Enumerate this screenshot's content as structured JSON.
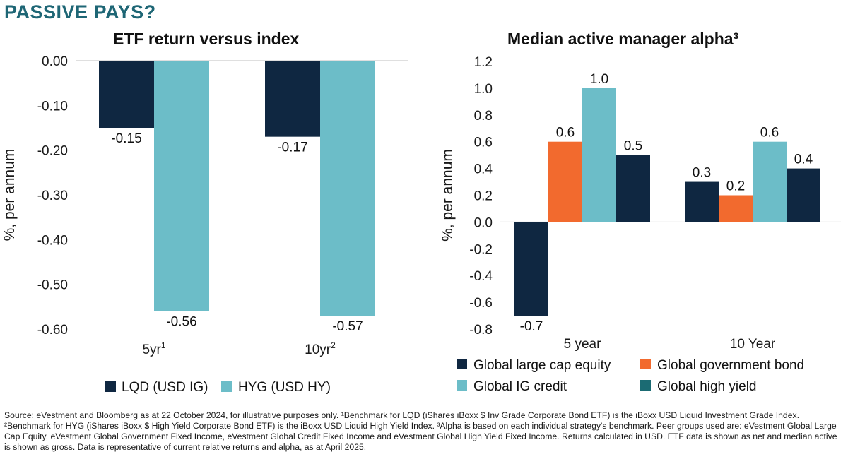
{
  "headline": "PASSIVE PAYS?",
  "source_note": "Source: eVestment and Bloomberg as at 22 October 2024, for illustrative purposes only. ¹Benchmark for LQD (iShares iBoxx $ Inv Grade Corporate Bond ETF) is the iBoxx USD Liquid Investment Grade Index. ²Benchmark for HYG (iShares iBoxx $ High Yield Corporate Bond ETF) is the iBoxx USD Liquid High Yield Index. ³Alpha is based on each individual strategy's benchmark. Peer groups used are: eVestment Global Large Cap Equity, eVestment Global Government Fixed Income, eVestment Global Credit Fixed Income and eVestment Global High Yield Fixed Income. Returns calculated in USD. ETF data is shown as net and median active is shown as gross. Data is representative of current relative returns and alpha, as at April 2025.",
  "chart_data": [
    {
      "type": "bar",
      "title": "ETF return versus index",
      "ylabel": "%, per annum",
      "categories": [
        "5yr¹",
        "10yr²"
      ],
      "ylim": [
        -0.6,
        0.0
      ],
      "yticks": [
        0.0,
        -0.1,
        -0.2,
        -0.3,
        -0.4,
        -0.5,
        -0.6
      ],
      "ytick_labels": [
        "0.00",
        "-0.10",
        "-0.20",
        "-0.30",
        "-0.40",
        "-0.50",
        "-0.60"
      ],
      "grid": false,
      "legend_position": "bottom",
      "series": [
        {
          "name": "LQD (USD IG)",
          "color": "#0f2741",
          "values": [
            -0.15,
            -0.17
          ],
          "labels": [
            "-0.15",
            "-0.17"
          ]
        },
        {
          "name": "HYG (USD HY)",
          "color": "#6cbdc8",
          "values": [
            -0.56,
            -0.57
          ],
          "labels": [
            "-0.56",
            "-0.57"
          ]
        }
      ]
    },
    {
      "type": "bar",
      "title": "Median active manager alpha³",
      "ylabel": "%, per annum",
      "categories": [
        "5 year",
        "10 Year"
      ],
      "ylim": [
        -0.8,
        1.2
      ],
      "yticks": [
        1.2,
        1.0,
        0.8,
        0.6,
        0.4,
        0.2,
        0.0,
        -0.2,
        -0.4,
        -0.6,
        -0.8
      ],
      "ytick_labels": [
        "1.2",
        "1.0",
        "0.8",
        "0.6",
        "0.4",
        "0.2",
        "0.0",
        "-0.2",
        "-0.4",
        "-0.6",
        "-0.8"
      ],
      "grid": false,
      "legend_position": "bottom",
      "series": [
        {
          "name": "Global large cap equity",
          "color": "#0f2741",
          "values": [
            -0.7,
            0.3
          ],
          "labels": [
            "-0.7",
            "0.3"
          ]
        },
        {
          "name": "Global government bond",
          "color": "#f26a2e",
          "values": [
            0.6,
            0.2
          ],
          "labels": [
            "0.6",
            "0.2"
          ]
        },
        {
          "name": "Global IG credit",
          "color": "#6cbdc8",
          "values": [
            1.0,
            0.6
          ],
          "labels": [
            "1.0",
            "0.6"
          ]
        },
        {
          "name": "Global high yield",
          "color": "#0f2741",
          "values": [
            0.5,
            0.4
          ],
          "labels": [
            "0.5",
            "0.4"
          ]
        }
      ],
      "legend_colors": [
        "#0f2741",
        "#f26a2e",
        "#6cbdc8",
        "#1b6b73"
      ]
    }
  ]
}
